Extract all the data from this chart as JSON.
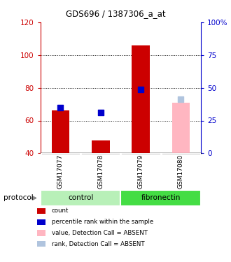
{
  "title": "GDS696 / 1387306_a_at",
  "samples": [
    "GSM17077",
    "GSM17078",
    "GSM17079",
    "GSM17080"
  ],
  "group_labels": [
    "control",
    "fibronectin"
  ],
  "bar_bottom": 40,
  "red_bars": [
    66,
    48,
    106,
    null
  ],
  "blue_dots": [
    68,
    65,
    79,
    null
  ],
  "pink_bars": [
    null,
    null,
    null,
    71
  ],
  "lavender_dots": [
    null,
    null,
    null,
    73
  ],
  "ylim_left": [
    40,
    120
  ],
  "ylim_right": [
    0,
    100
  ],
  "yticks_left": [
    40,
    60,
    80,
    100,
    120
  ],
  "yticks_right": [
    0,
    25,
    50,
    75,
    100
  ],
  "ytick_labels_right": [
    "0",
    "25",
    "50",
    "75",
    "100%"
  ],
  "ylabel_left_color": "#cc0000",
  "ylabel_right_color": "#0000cc",
  "grid_lines": [
    60,
    80,
    100
  ],
  "bar_width": 0.45,
  "dot_size": 28,
  "legend_items": [
    {
      "label": "count",
      "color": "#cc0000"
    },
    {
      "label": "percentile rank within the sample",
      "color": "#0000cc"
    },
    {
      "label": "value, Detection Call = ABSENT",
      "color": "#ffb6c1"
    },
    {
      "label": "rank, Detection Call = ABSENT",
      "color": "#b0c4de"
    }
  ],
  "protocol_label": "protocol",
  "background_color": "#ffffff",
  "tick_label_area_color": "#d3d3d3",
  "group_area_color_control": "#b8f0b8",
  "group_area_color_fibronectin": "#44dd44"
}
